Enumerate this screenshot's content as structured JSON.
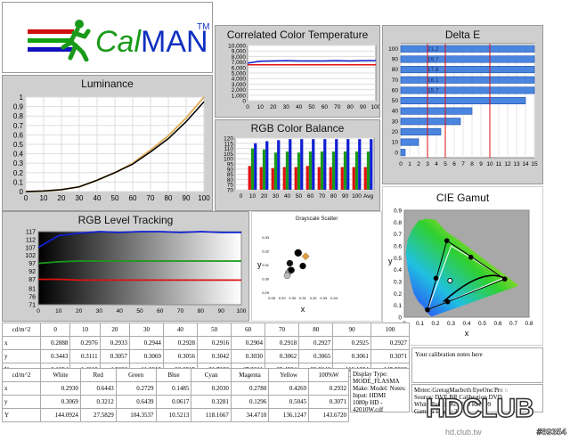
{
  "logo": {
    "text_cal": "Cal",
    "text_man": "MAN",
    "tm": "TM"
  },
  "colors": {
    "panel": "#cfcfcf",
    "plot": "#ffffff",
    "red": "#e01010",
    "green": "#1a9a1a",
    "blue": "#1020d0",
    "orange": "#e0a040"
  },
  "chart_data": [
    {
      "id": "luminance",
      "type": "line",
      "title": "Luminance",
      "x": [
        0,
        10,
        20,
        30,
        40,
        50,
        60,
        70,
        80,
        90,
        100
      ],
      "series": [
        {
          "values": [
            0,
            0.005,
            0.02,
            0.05,
            0.12,
            0.2,
            0.3,
            0.44,
            0.59,
            0.78,
            1.0
          ]
        },
        {
          "values": [
            0,
            0.006,
            0.02,
            0.05,
            0.12,
            0.2,
            0.29,
            0.42,
            0.56,
            0.74,
            0.95
          ]
        }
      ],
      "xlim": [
        0,
        100
      ],
      "ylim": [
        0,
        1
      ],
      "xticks": [
        "0",
        "10",
        "20",
        "30",
        "40",
        "50",
        "60",
        "70",
        "80",
        "90",
        "100"
      ],
      "yticks": [
        "0",
        "0.1",
        "0.2",
        "0.3",
        "0.4",
        "0.5",
        "0.6",
        "0.7",
        "0.8",
        "0.9",
        "1"
      ],
      "grid": true
    },
    {
      "id": "cct",
      "type": "line",
      "title": "Correlated Color Temperature",
      "x": [
        0,
        10,
        20,
        30,
        40,
        50,
        60,
        70,
        80,
        90,
        100
      ],
      "series": [
        {
          "values": [
            6500,
            6500,
            6500,
            6500,
            6500,
            6500,
            6500,
            6500,
            6500,
            6500,
            6500
          ]
        },
        {
          "values": [
            6800,
            7150,
            7200,
            7250,
            7200,
            7200,
            7200,
            7250,
            7200,
            7250,
            7250
          ]
        }
      ],
      "xlim": [
        0,
        100
      ],
      "ylim": [
        0,
        10000
      ],
      "xticks": [
        "0",
        "10",
        "20",
        "30",
        "40",
        "50",
        "60",
        "70",
        "80",
        "90",
        "100"
      ],
      "yticks": [
        "0",
        "1,000",
        "2,000",
        "3,000",
        "4,000",
        "5,000",
        "6,000",
        "7,000",
        "8,000",
        "9,000",
        "10,000"
      ],
      "grid": true
    },
    {
      "id": "rgb_balance",
      "type": "bar",
      "title": "RGB Color Balance",
      "categories": [
        "0",
        "10",
        "20",
        "30",
        "40",
        "50",
        "60",
        "70",
        "80",
        "90",
        "100",
        "Avg"
      ],
      "series": [
        {
          "values": [
            70,
            93,
            92,
            91,
            92,
            92,
            93,
            92,
            92,
            92,
            92,
            92
          ]
        },
        {
          "values": [
            70,
            110,
            109,
            106,
            107,
            106,
            107,
            107,
            107,
            107,
            107,
            107
          ]
        },
        {
          "values": [
            70,
            115,
            117,
            118,
            119,
            119,
            119,
            119,
            119,
            119,
            119,
            119
          ]
        }
      ],
      "ylim": [
        70,
        120
      ],
      "yticks": [
        "70",
        "75",
        "80",
        "85",
        "90",
        "95",
        "100",
        "105",
        "110",
        "115",
        "120"
      ],
      "grid": true
    },
    {
      "id": "delta_e",
      "type": "bar",
      "orientation": "horizontal",
      "title": "Delta E",
      "categories": [
        "100",
        "90",
        "80",
        "70",
        "60",
        "50",
        "40",
        "30",
        "20",
        "10",
        "0"
      ],
      "values": [
        21.2,
        19.7,
        17.8,
        16.1,
        15.7,
        14.0,
        8.0,
        6.7,
        4.5,
        2.0,
        0.5
      ],
      "data_labels": [
        "21.2",
        "19.7",
        "17.8",
        "16.1",
        "15.7",
        "",
        "",
        "",
        "",
        "",
        ""
      ],
      "xlim": [
        0,
        15
      ],
      "xticks": [
        "0",
        "1",
        "2",
        "3",
        "4",
        "5",
        "6",
        "7",
        "8",
        "9",
        "10",
        "11",
        "12",
        "13",
        "14",
        "15"
      ],
      "reference_lines": [
        3,
        5,
        10
      ]
    },
    {
      "id": "rgb_tracking",
      "type": "line",
      "title": "RGB Level Tracking",
      "x": [
        0,
        10,
        20,
        30,
        40,
        50,
        60,
        70,
        80,
        90,
        100
      ],
      "series": [
        {
          "values": [
            87,
            87,
            86.5,
            86.5,
            86.5,
            86.5,
            86.5,
            86.5,
            86.5,
            86.5,
            86.5
          ]
        },
        {
          "values": [
            97,
            98,
            98.5,
            98.5,
            98.5,
            98.5,
            98.5,
            98.5,
            98.5,
            98.5,
            98.5
          ]
        },
        {
          "values": [
            107,
            114.5,
            116,
            117,
            116.5,
            117,
            117,
            116.5,
            117,
            116.5,
            116.5
          ]
        }
      ],
      "xlim": [
        0,
        100
      ],
      "ylim": [
        71,
        117
      ],
      "xticks": [
        "0",
        "10",
        "20",
        "30",
        "40",
        "50",
        "60",
        "70",
        "80",
        "90",
        "100"
      ],
      "yticks": [
        "117",
        "112",
        "107",
        "102",
        "97",
        "92",
        "87",
        "81",
        "76",
        "71"
      ]
    },
    {
      "id": "grayscale_scatter",
      "type": "scatter",
      "title": "Grayscale Scatter",
      "xlabel": "x",
      "ylabel": "y",
      "points": [
        {
          "x": 0.3055,
          "y": 0.3185,
          "color": "#000000"
        },
        {
          "x": 0.2975,
          "y": 0.311,
          "color": "#111111"
        },
        {
          "x": 0.298,
          "y": 0.306,
          "color": "#555555"
        },
        {
          "x": 0.296,
          "y": 0.304,
          "color": "#999999"
        },
        {
          "x": 0.295,
          "y": 0.302,
          "color": "#bbbbbb"
        },
        {
          "x": 0.299,
          "y": 0.306,
          "color": "#000000"
        },
        {
          "x": 0.31,
          "y": 0.309,
          "color": "#000000"
        },
        {
          "x": 0.3127,
          "y": 0.316,
          "color": "#e0a040"
        }
      ],
      "xlim": [
        0.28,
        0.32
      ],
      "ylim": [
        0.29,
        0.33
      ],
      "xticks": [
        "0.28",
        "0.29",
        "0.30",
        "0.31",
        "0.32",
        "0.33",
        "0.34"
      ],
      "yticks": [
        "0.33",
        "0.32",
        "0.31",
        "0.30",
        "0.29"
      ]
    },
    {
      "id": "cie_gamut",
      "type": "scatter",
      "title": "CIE Gamut",
      "xlabel": "x",
      "ylabel": "y",
      "xlim": [
        0,
        0.8
      ],
      "ylim": [
        0,
        0.9
      ],
      "xticks": [
        "0",
        "0.1",
        "0.2",
        "0.3",
        "0.4",
        "0.5",
        "0.6",
        "0.7",
        "0.8"
      ],
      "yticks": [
        "0.9",
        "0.8",
        "0.7",
        "0.6",
        "0.5",
        "0.4",
        "0.3",
        "0.2",
        "0.1",
        "0"
      ],
      "reference_gamut": [
        [
          0.64,
          0.33
        ],
        [
          0.3,
          0.6
        ],
        [
          0.15,
          0.06
        ]
      ],
      "measured_gamut": [
        [
          0.6443,
          0.3212
        ],
        [
          0.2729,
          0.6439
        ],
        [
          0.1485,
          0.0617
        ]
      ],
      "measured_secondary": [
        [
          0.203,
          0.3281
        ],
        [
          0.278,
          0.1296
        ],
        [
          0.4269,
          0.5045
        ]
      ],
      "white": [
        0.2932,
        0.3071
      ]
    }
  ],
  "grayscale_table": {
    "header": [
      "cd/m^2",
      "0",
      "10",
      "20",
      "30",
      "40",
      "50",
      "60",
      "70",
      "80",
      "90",
      "100"
    ],
    "rows": [
      [
        "x",
        "0.2888",
        "0.2976",
        "0.2933",
        "0.2944",
        "0.2928",
        "0.2916",
        "0.2904",
        "0.2918",
        "0.2927",
        "0.2925",
        "0.2927"
      ],
      [
        "y",
        "0.3443",
        "0.3111",
        "0.3057",
        "0.3069",
        "0.3056",
        "0.3042",
        "0.3030",
        "0.3062",
        "0.3065",
        "0.3061",
        "0.3071"
      ],
      [
        "Y",
        "0.1094",
        "1.4219",
        "4.8606",
        "11.0810",
        "20.0315",
        "31.7130",
        "47.3811",
        "65.4384",
        "89.9040",
        "112.1934",
        "145.5908"
      ]
    ]
  },
  "color_table": {
    "header": [
      "cd/m^2",
      "White",
      "Red",
      "Green",
      "Blue",
      "Cyan",
      "Magenta",
      "Yellow",
      "100%W"
    ],
    "rows": [
      [
        "x",
        "0.2930",
        "0.6443",
        "0.2729",
        "0.1485",
        "0.2030",
        "0.2780",
        "0.4269",
        "0.2932"
      ],
      [
        "y",
        "0.3069",
        "0.3212",
        "0.6439",
        "0.0617",
        "0.3281",
        "0.1296",
        "0.5045",
        "0.3071"
      ],
      [
        "Y",
        "144.0924",
        "27.5829",
        "104.3537",
        "10.5213",
        "118.1667",
        "34.4710",
        "136.1247",
        "143.6720"
      ]
    ]
  },
  "display_info": {
    "line1": "Display Type:  MODE_FLASMA",
    "line2": "Make:  Model:  Notes:  Input:  HDMI",
    "line3": "1080p HD   -   42010W.cdf"
  },
  "notes": {
    "text": "Your calibration notes here"
  },
  "meter_info": {
    "line1": "Meter: GretagMacbeth EyeOne Pro",
    "line2": "Source: DVE BR Calibration DVD",
    "line3": "White Point: D65, HD Rec709",
    "line4": "Gamma Target: 2.5"
  },
  "watermark": {
    "brand": "HDCLUB",
    "sub": "Television Vision Club",
    "url": "hd.club.tw",
    "code": "#89354"
  }
}
